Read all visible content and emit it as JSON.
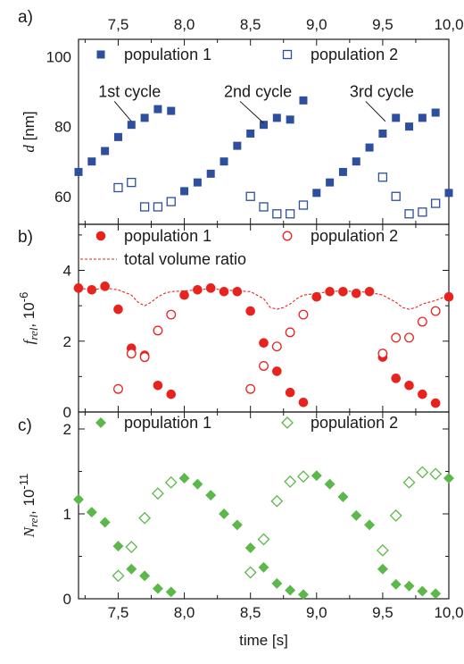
{
  "chart_data": [
    {
      "type": "scatter",
      "panel_label": "a)",
      "ylabel": "d",
      "ylabel_unit": " [nm]",
      "xlim": [
        7.2,
        10.0
      ],
      "ylim": [
        52,
        105
      ],
      "xticks": [
        7.5,
        8.0,
        8.5,
        9.0,
        9.5,
        10.0
      ],
      "xtick_labels": [
        "7,5",
        "8,0",
        "8,5",
        "9,0",
        "9,5",
        "10,0"
      ],
      "xticks_on_top": true,
      "yticks": [
        60,
        80,
        100
      ],
      "ytick_labels": [
        "60",
        "80",
        "100"
      ],
      "series": [
        {
          "name": "population 1",
          "marker": "square",
          "filled": true,
          "color": "#2e4f9e",
          "x": [
            7.2,
            7.3,
            7.4,
            7.5,
            7.6,
            7.7,
            7.8,
            7.9,
            8.0,
            8.1,
            8.2,
            8.3,
            8.4,
            8.5,
            8.6,
            8.7,
            8.8,
            8.9,
            9.0,
            9.1,
            9.2,
            9.3,
            9.4,
            9.5,
            9.6,
            9.7,
            9.8,
            9.9,
            10.0
          ],
          "y": [
            67,
            70,
            73,
            77,
            80.5,
            82.5,
            85,
            84.5,
            61.5,
            64,
            66.5,
            70,
            74.5,
            78,
            80.5,
            82.5,
            82,
            87.5,
            61,
            64,
            67,
            70,
            74,
            78,
            82.5,
            80,
            82.5,
            84,
            61
          ]
        },
        {
          "name": "population 2",
          "marker": "square",
          "filled": false,
          "color": "#2e4f9e",
          "x": [
            7.5,
            7.6,
            7.7,
            7.8,
            7.9,
            8.5,
            8.6,
            8.7,
            8.8,
            8.9,
            9.5,
            9.6,
            9.7,
            9.8,
            9.9
          ],
          "y": [
            62.5,
            64,
            57,
            57,
            58.5,
            60,
            57,
            55,
            55,
            57.5,
            65.5,
            60,
            55,
            55.5,
            58
          ]
        }
      ],
      "annotations": [
        {
          "text": "1st cycle",
          "x": 7.35,
          "y": 88.5,
          "arrow_to": [
            7.6,
            81.5
          ]
        },
        {
          "text": "2nd cycle",
          "x": 8.3,
          "y": 88.5,
          "arrow_to": [
            8.6,
            81
          ]
        },
        {
          "text": "3rd cycle",
          "x": 9.25,
          "y": 88.5,
          "arrow_to": [
            9.52,
            81.5
          ]
        }
      ],
      "legend": "top"
    },
    {
      "type": "scatter",
      "panel_label": "b)",
      "ylabel": "f",
      "ylabel_sub": "rel",
      "ylabel_unit": ", 10",
      "ylabel_sup": "-6",
      "xlim": [
        7.2,
        10.0
      ],
      "ylim": [
        0,
        5.3
      ],
      "xticks": [
        7.5,
        8.0,
        8.5,
        9.0,
        9.5,
        10.0
      ],
      "yticks": [
        0,
        2,
        4
      ],
      "ytick_labels": [
        "0",
        "2",
        "4"
      ],
      "series": [
        {
          "name": "population 1",
          "marker": "circle",
          "filled": true,
          "color": "#e8231e",
          "x": [
            7.2,
            7.3,
            7.4,
            7.5,
            7.6,
            7.7,
            7.8,
            7.9,
            8.0,
            8.1,
            8.2,
            8.3,
            8.4,
            8.5,
            8.6,
            8.7,
            8.8,
            8.9,
            9.0,
            9.1,
            9.2,
            9.3,
            9.4,
            9.5,
            9.6,
            9.7,
            9.8,
            9.9,
            10.0
          ],
          "y": [
            3.5,
            3.45,
            3.55,
            2.9,
            1.8,
            1.6,
            0.75,
            0.5,
            3.3,
            3.45,
            3.5,
            3.4,
            3.4,
            2.85,
            1.95,
            1.15,
            0.55,
            0.27,
            3.25,
            3.4,
            3.4,
            3.35,
            3.4,
            1.55,
            0.95,
            0.75,
            0.5,
            0.25,
            3.25
          ]
        },
        {
          "name": "population 2",
          "marker": "circle",
          "filled": false,
          "color": "#e8231e",
          "x": [
            7.5,
            7.6,
            7.7,
            7.8,
            7.9,
            8.5,
            8.6,
            8.7,
            8.8,
            8.9,
            9.5,
            9.6,
            9.7,
            9.8,
            9.9
          ],
          "y": [
            0.65,
            1.65,
            1.55,
            2.3,
            2.75,
            0.65,
            1.3,
            1.85,
            2.25,
            2.75,
            1.65,
            2.1,
            2.1,
            2.55,
            2.85
          ]
        },
        {
          "name": "total volume ratio",
          "type": "line",
          "dashed": true,
          "color": "#e8231e",
          "x": [
            7.2,
            7.3,
            7.4,
            7.5,
            7.6,
            7.65,
            7.7,
            7.75,
            7.8,
            7.85,
            7.9,
            8.0,
            8.1,
            8.2,
            8.3,
            8.4,
            8.5,
            8.6,
            8.65,
            8.7,
            8.75,
            8.8,
            8.85,
            8.9,
            9.0,
            9.1,
            9.2,
            9.3,
            9.4,
            9.5,
            9.6,
            9.65,
            9.7,
            9.75,
            9.8,
            9.85,
            9.9,
            10.0
          ],
          "y": [
            3.5,
            3.45,
            3.5,
            3.45,
            3.3,
            3.1,
            3.0,
            3.1,
            3.25,
            3.35,
            3.4,
            3.42,
            3.45,
            3.48,
            3.45,
            3.42,
            3.4,
            3.2,
            2.95,
            2.9,
            2.95,
            3.05,
            3.2,
            3.3,
            3.35,
            3.4,
            3.42,
            3.4,
            3.38,
            3.3,
            3.1,
            2.95,
            2.9,
            2.95,
            3.05,
            3.1,
            3.15,
            3.3
          ]
        }
      ],
      "legend": "top"
    },
    {
      "type": "scatter",
      "panel_label": "c)",
      "ylabel": "N",
      "ylabel_sub": "rel",
      "ylabel_unit": ", 10",
      "ylabel_sup": "-11",
      "xlabel": "time [s]",
      "xlim": [
        7.2,
        10.0
      ],
      "ylim": [
        0,
        2.2
      ],
      "xticks": [
        7.5,
        8.0,
        8.5,
        9.0,
        9.5,
        10.0
      ],
      "xtick_labels": [
        "7,5",
        "8,0",
        "8,5",
        "9,0",
        "9,5",
        "10,0"
      ],
      "yticks": [
        0,
        1,
        2
      ],
      "ytick_labels": [
        "0",
        "1",
        "2"
      ],
      "series": [
        {
          "name": "population 1",
          "marker": "diamond",
          "filled": true,
          "color": "#5cb84a",
          "x": [
            7.2,
            7.3,
            7.4,
            7.5,
            7.6,
            7.7,
            7.8,
            7.9,
            8.0,
            8.1,
            8.2,
            8.3,
            8.4,
            8.5,
            8.6,
            8.7,
            8.8,
            8.9,
            9.0,
            9.1,
            9.2,
            9.3,
            9.4,
            9.5,
            9.6,
            9.7,
            9.8,
            9.9,
            10.0
          ],
          "y": [
            1.17,
            1.02,
            0.9,
            0.62,
            0.35,
            0.27,
            0.12,
            0.08,
            1.42,
            1.35,
            1.22,
            1.0,
            0.87,
            0.6,
            0.37,
            0.18,
            0.1,
            0.05,
            1.45,
            1.35,
            1.2,
            0.98,
            0.87,
            0.35,
            0.17,
            0.15,
            0.09,
            0.06,
            1.42
          ]
        },
        {
          "name": "population 2",
          "marker": "diamond",
          "filled": false,
          "color": "#5cb84a",
          "x": [
            7.5,
            7.6,
            7.7,
            7.8,
            7.9,
            8.5,
            8.6,
            8.7,
            8.8,
            8.9,
            9.5,
            9.6,
            9.7,
            9.8,
            9.9
          ],
          "y": [
            0.27,
            0.61,
            0.95,
            1.24,
            1.37,
            0.31,
            0.7,
            1.15,
            1.38,
            1.44,
            0.57,
            0.98,
            1.37,
            1.49,
            1.47
          ]
        }
      ],
      "legend": "top"
    }
  ]
}
